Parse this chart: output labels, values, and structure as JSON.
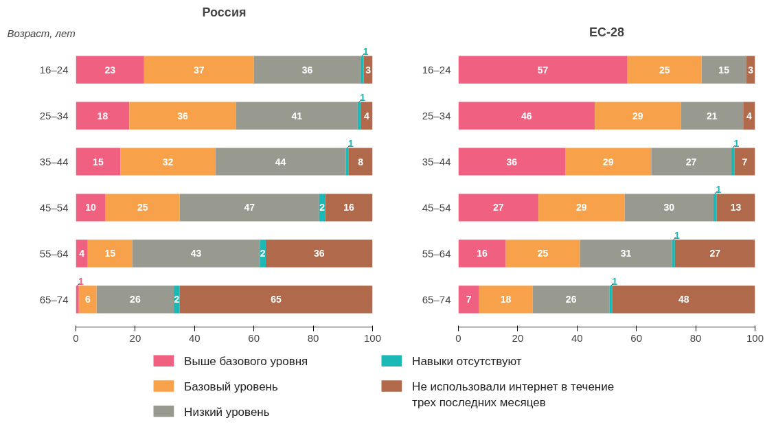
{
  "chart_data": [
    {
      "type": "bar",
      "title": "Россия",
      "ylabel": "Возраст, лет",
      "orientation": "horizontal",
      "stacked": true,
      "data_labels": true,
      "grid": false,
      "legend": "bottom",
      "xlim": [
        0,
        100
      ],
      "xticks": [
        0,
        20,
        40,
        60,
        80,
        100
      ],
      "categories": [
        "16–24",
        "25–34",
        "35–44",
        "45–54",
        "55–64",
        "65–74"
      ],
      "series": [
        {
          "name": "Выше базового уровня",
          "color": "#f06080",
          "values": [
            23,
            18,
            15,
            10,
            4,
            1
          ]
        },
        {
          "name": "Базовый уровень",
          "color": "#f7a24b",
          "values": [
            37,
            36,
            32,
            25,
            15,
            6
          ]
        },
        {
          "name": "Низкий уровень",
          "color": "#999a8f",
          "values": [
            36,
            41,
            44,
            47,
            43,
            26
          ]
        },
        {
          "name": "Навыки отсутствуют",
          "color": "#1bb8b5",
          "values": [
            1,
            1,
            1,
            2,
            2,
            2
          ]
        },
        {
          "name": "Не использовали интернет в течение трех последних месяцев",
          "color": "#b0694a",
          "values": [
            3,
            4,
            8,
            16,
            36,
            65
          ]
        }
      ]
    },
    {
      "type": "bar",
      "title": "ЕС-28",
      "orientation": "horizontal",
      "stacked": true,
      "data_labels": true,
      "grid": false,
      "xlim": [
        0,
        100
      ],
      "xticks": [
        0,
        20,
        40,
        60,
        80,
        100
      ],
      "categories": [
        "16–24",
        "25–34",
        "35–44",
        "45–54",
        "55–64",
        "65–74"
      ],
      "series": [
        {
          "color": "#f06080",
          "values": [
            57,
            46,
            36,
            27,
            16,
            7
          ]
        },
        {
          "color": "#f7a24b",
          "values": [
            25,
            29,
            29,
            29,
            25,
            18
          ]
        },
        {
          "color": "#999a8f",
          "values": [
            15,
            21,
            27,
            30,
            31,
            26
          ]
        },
        {
          "color": "#1bb8b5",
          "values": [
            null,
            null,
            1,
            1,
            1,
            1
          ]
        },
        {
          "color": "#b0694a",
          "values": [
            3,
            4,
            7,
            13,
            27,
            48
          ]
        }
      ]
    }
  ]
}
